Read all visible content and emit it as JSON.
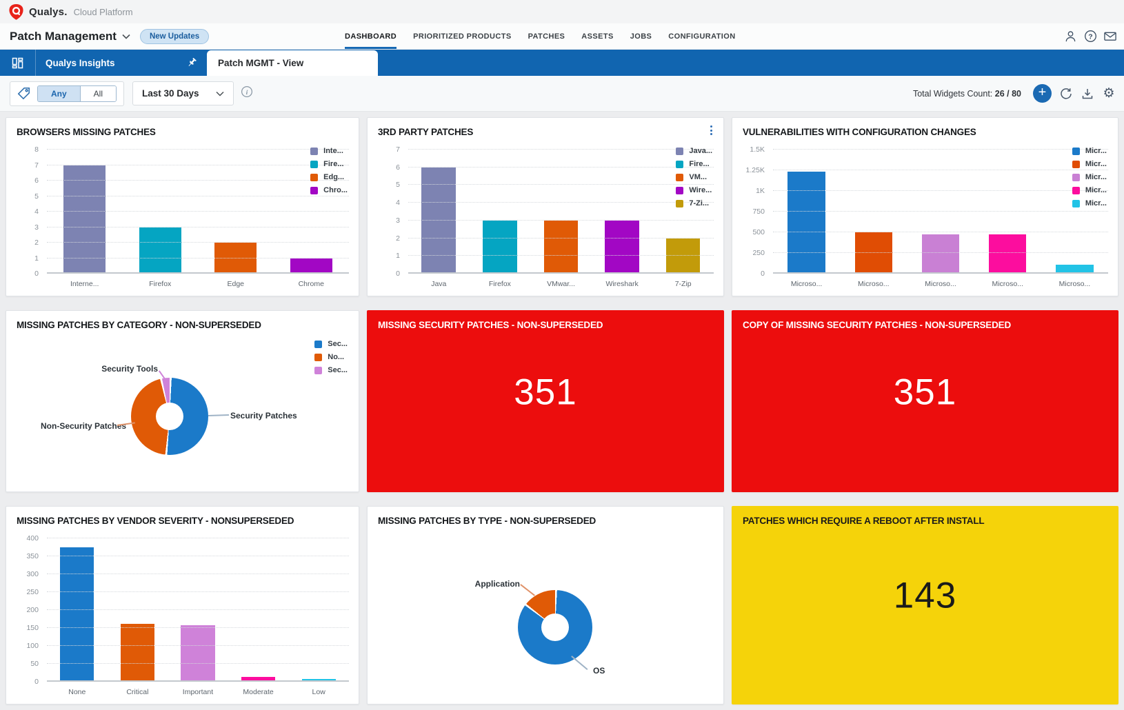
{
  "header": {
    "brand": "Qualys.",
    "platform": "Cloud Platform",
    "app_title": "Patch Management",
    "new_updates_label": "New Updates",
    "nav": [
      {
        "label": "DASHBOARD",
        "active": true
      },
      {
        "label": "PRIORITIZED PRODUCTS",
        "active": false
      },
      {
        "label": "PATCHES",
        "active": false
      },
      {
        "label": "ASSETS",
        "active": false
      },
      {
        "label": "JOBS",
        "active": false
      },
      {
        "label": "CONFIGURATION",
        "active": false
      }
    ]
  },
  "subnav": {
    "insights_label": "Qualys Insights",
    "active_tab": "Patch MGMT - View"
  },
  "filter_bar": {
    "match_options": {
      "options": [
        "Any",
        "All"
      ],
      "selected": "Any"
    },
    "date_range": "Last 30 Days",
    "widgets_count_label": "Total Widgets Count:",
    "widgets_count_value": "26 / 80"
  },
  "theme": {
    "topbar_blue": "#1165b0",
    "accent_blue": "#1468b4",
    "alert_red": "#ec0d0d",
    "warning_yellow": "#f5d30a"
  },
  "widgets": [
    {
      "title": "BROWSERS MISSING PATCHES",
      "type": "bar",
      "categories": [
        "Interne...",
        "Firefox",
        "Edge",
        "Chrome"
      ],
      "values": [
        7,
        3,
        2,
        1
      ],
      "bar_colors": [
        "#7d83b2",
        "#05a5c2",
        "#e05a06",
        "#a207c4"
      ],
      "legend": [
        {
          "label": "Inte...",
          "color": "#7d83b2"
        },
        {
          "label": "Fire...",
          "color": "#05a5c2"
        },
        {
          "label": "Edg...",
          "color": "#e05a06"
        },
        {
          "label": "Chro...",
          "color": "#a207c4"
        }
      ],
      "yticks": [
        [
          0,
          "0"
        ],
        [
          1,
          "1"
        ],
        [
          2,
          "2"
        ],
        [
          3,
          "3"
        ],
        [
          4,
          "4"
        ],
        [
          5,
          "5"
        ],
        [
          6,
          "6"
        ],
        [
          7,
          "7"
        ],
        [
          8,
          "8"
        ]
      ],
      "ylim": [
        0,
        8
      ]
    },
    {
      "title": "3RD PARTY PATCHES",
      "type": "bar",
      "categories": [
        "Java",
        "Firefox",
        "VMwar...",
        "Wireshark",
        "7-Zip"
      ],
      "values": [
        6,
        3,
        3,
        3,
        2
      ],
      "bar_colors": [
        "#7d83b2",
        "#05a5c2",
        "#e05a06",
        "#a207c4",
        "#c29b0a"
      ],
      "legend": [
        {
          "label": "Java...",
          "color": "#7d83b2"
        },
        {
          "label": "Fire...",
          "color": "#05a5c2"
        },
        {
          "label": "VM...",
          "color": "#e05a06"
        },
        {
          "label": "Wire...",
          "color": "#a207c4"
        },
        {
          "label": "7-Zi...",
          "color": "#c29b0a"
        }
      ],
      "yticks": [
        [
          0,
          "0"
        ],
        [
          1,
          "1"
        ],
        [
          2,
          "2"
        ],
        [
          3,
          "3"
        ],
        [
          4,
          "4"
        ],
        [
          5,
          "5"
        ],
        [
          6,
          "6"
        ],
        [
          7,
          "7"
        ]
      ],
      "ylim": [
        0,
        7
      ],
      "has_menu": true
    },
    {
      "title": "VULNERABILITIES WITH CONFIGURATION CHANGES",
      "type": "bar",
      "categories": [
        "Microso...",
        "Microso...",
        "Microso...",
        "Microso...",
        "Microso..."
      ],
      "values": [
        1230,
        500,
        475,
        475,
        110
      ],
      "bar_colors": [
        "#1b7ac9",
        "#e04d04",
        "#c980d4",
        "#fc0d9e",
        "#22c3e6"
      ],
      "legend": [
        {
          "label": "Micr...",
          "color": "#1b7ac9"
        },
        {
          "label": "Micr...",
          "color": "#e04d04"
        },
        {
          "label": "Micr...",
          "color": "#c980d4"
        },
        {
          "label": "Micr...",
          "color": "#fc0d9e"
        },
        {
          "label": "Micr...",
          "color": "#22c3e6"
        }
      ],
      "yticks": [
        [
          0,
          "0"
        ],
        [
          250,
          "250"
        ],
        [
          500,
          "500"
        ],
        [
          750,
          "750"
        ],
        [
          1000,
          "1K"
        ],
        [
          1250,
          "1.25K"
        ],
        [
          1500,
          "1.5K"
        ]
      ],
      "ylim": [
        0,
        1500
      ]
    },
    {
      "title": "MISSING PATCHES BY CATEGORY - NON-SUPERSEDED",
      "type": "donut",
      "slices": [
        {
          "label": "Security Patches",
          "value": 51,
          "color": "#1b7ac9"
        },
        {
          "label": "Non-Security Patches",
          "value": 45,
          "color": "#e05a06"
        },
        {
          "label": "Security Tools",
          "value": 4,
          "color": "#cf82d9"
        }
      ],
      "legend": [
        {
          "label": "Sec...",
          "color": "#1b7ac9"
        },
        {
          "label": "No...",
          "color": "#e05a06"
        },
        {
          "label": "Sec...",
          "color": "#cf82d9"
        }
      ],
      "callouts": {
        "a": "Security Tools",
        "b": "Non-Security Patches",
        "c": "Security Patches"
      }
    },
    {
      "title": "MISSING SECURITY PATCHES - NON-SUPERSEDED",
      "type": "number",
      "value": "351",
      "bg": "#ec0d0d",
      "fg": "#ffffff"
    },
    {
      "title": "COPY OF MISSING SECURITY PATCHES - NON-SUPERSEDED",
      "type": "number",
      "value": "351",
      "bg": "#ec0d0d",
      "fg": "#ffffff"
    },
    {
      "title": "MISSING PATCHES BY VENDOR SEVERITY - NONSUPERSEDED",
      "type": "bar",
      "categories": [
        "None",
        "Critical",
        "Important",
        "Moderate",
        "Low"
      ],
      "values": [
        375,
        162,
        157,
        13,
        8
      ],
      "bar_colors": [
        "#1b7ac9",
        "#e05a06",
        "#cf82d9",
        "#fc0d9e",
        "#22c3e6"
      ],
      "yticks": [
        [
          0,
          "0"
        ],
        [
          50,
          "50"
        ],
        [
          100,
          "100"
        ],
        [
          150,
          "150"
        ],
        [
          200,
          "200"
        ],
        [
          250,
          "250"
        ],
        [
          300,
          "300"
        ],
        [
          350,
          "350"
        ],
        [
          400,
          "400"
        ]
      ],
      "ylim": [
        0,
        400
      ]
    },
    {
      "title": "MISSING PATCHES BY TYPE - NON-SUPERSEDED",
      "type": "donut",
      "slices": [
        {
          "label": "OS",
          "value": 85,
          "color": "#1b7ac9"
        },
        {
          "label": "Application",
          "value": 15,
          "color": "#e05a06"
        }
      ],
      "callouts": {
        "a": "Application",
        "b": "OS"
      }
    },
    {
      "title": "PATCHES WHICH REQUIRE A REBOOT AFTER INSTALL",
      "type": "number",
      "value": "143",
      "bg": "#f5d30a",
      "fg": "#1a1a1a"
    }
  ]
}
